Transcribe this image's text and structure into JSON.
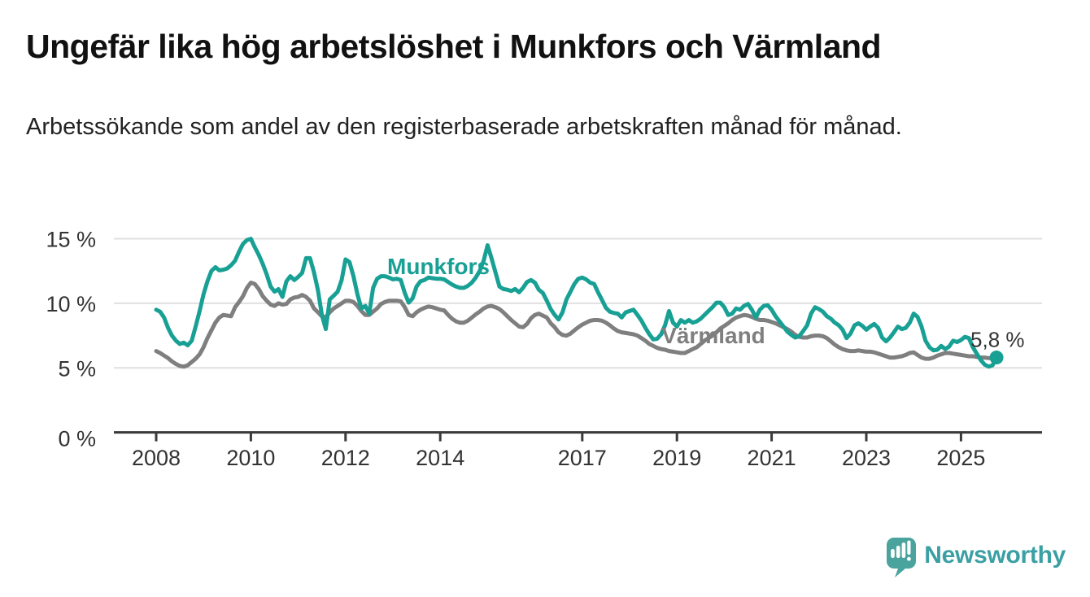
{
  "header": {
    "title": "Ungefär lika hög arbetslöshet i Munkfors och Värmland",
    "subtitle": "Arbetssökande som andel av den registerbaserade arbetskraften månad för månad."
  },
  "branding": {
    "logo_text": "Newsworthy",
    "logo_icon": "speech-bubble-bar-chart-icon"
  },
  "colors": {
    "munkfors_teal": "#18A095",
    "varmland_gray": "#7F7F7F",
    "gridline": "#E0E0E0",
    "axis": "#3A3A3A",
    "tick_label": "#333333",
    "annotation": "#333333",
    "logo_icon": "#4AA39D",
    "logo_text": "#3BA0A4"
  },
  "chart_data": {
    "type": "line",
    "title": "Ungefär lika hög arbetslöshet i Munkfors och Värmland",
    "xlabel": "",
    "ylabel": "Arbetssökande som andel av den registerbaserade arbetskraften",
    "x_frequency": "monthly",
    "x_start": "2008-01",
    "x_end": "2025-10",
    "xlim": [
      2007.1,
      2026.7
    ],
    "ylim": [
      0,
      16.5
    ],
    "grid": "horizontal",
    "legend": "inline-series-labels",
    "y_ticks": [
      0,
      5,
      10,
      15
    ],
    "y_tick_labels": [
      "0 %",
      "5 %",
      "10 %",
      "15 %"
    ],
    "y_gridlines": [
      5,
      10,
      15
    ],
    "x_ticks": [
      2008,
      2010,
      2012,
      2014,
      2017,
      2019,
      2021,
      2023,
      2025
    ],
    "x_tick_labels": [
      "2008",
      "2010",
      "2012",
      "2014",
      "2017",
      "2019",
      "2021",
      "2023",
      "2025"
    ],
    "annotation": {
      "text": "5,8 %",
      "series": "Munkfors",
      "position": "last-point",
      "last_value": 5.8
    },
    "series": [
      {
        "name": "Munkfors",
        "color": "#18A095",
        "end_dot": true,
        "values": [
          9.5,
          9.35,
          8.9,
          8.1,
          7.5,
          7.1,
          6.85,
          6.95,
          6.75,
          7.1,
          8.2,
          9.4,
          10.7,
          11.7,
          12.5,
          12.8,
          12.55,
          12.6,
          12.7,
          12.95,
          13.3,
          14.0,
          14.6,
          14.9,
          15.0,
          14.35,
          13.75,
          13.05,
          12.25,
          11.3,
          10.9,
          11.1,
          10.5,
          11.7,
          12.1,
          11.8,
          12.05,
          12.35,
          13.5,
          13.5,
          12.4,
          11.0,
          9.1,
          8.0,
          10.3,
          10.6,
          10.9,
          11.8,
          13.4,
          13.2,
          12.1,
          10.7,
          9.6,
          9.8,
          9.2,
          11.2,
          11.9,
          12.1,
          12.1,
          12.0,
          11.85,
          11.9,
          11.8,
          10.8,
          10.05,
          10.4,
          11.3,
          11.7,
          11.8,
          12.0,
          11.95,
          11.9,
          11.9,
          11.85,
          11.65,
          11.45,
          11.3,
          11.2,
          11.2,
          11.35,
          11.6,
          12.0,
          12.5,
          13.3,
          14.5,
          13.5,
          12.4,
          11.3,
          11.1,
          11.05,
          10.95,
          11.1,
          10.85,
          11.2,
          11.65,
          11.8,
          11.6,
          11.05,
          10.8,
          10.2,
          9.55,
          9.1,
          8.75,
          9.3,
          10.3,
          10.9,
          11.5,
          11.9,
          12.0,
          11.85,
          11.6,
          11.5,
          10.85,
          10.25,
          9.65,
          9.35,
          9.25,
          9.2,
          8.9,
          9.3,
          9.4,
          9.5,
          9.1,
          8.65,
          8.1,
          7.6,
          7.2,
          7.25,
          7.6,
          8.3,
          9.4,
          8.5,
          8.2,
          8.7,
          8.5,
          8.7,
          8.5,
          8.6,
          8.8,
          9.1,
          9.4,
          9.7,
          10.05,
          10.05,
          9.7,
          9.1,
          9.2,
          9.6,
          9.5,
          9.8,
          9.95,
          9.5,
          8.9,
          9.5,
          9.8,
          9.85,
          9.5,
          9.0,
          8.6,
          8.2,
          7.8,
          7.55,
          7.35,
          7.45,
          7.85,
          8.3,
          9.2,
          9.7,
          9.55,
          9.35,
          9.0,
          8.8,
          8.5,
          8.3,
          7.95,
          7.3,
          7.65,
          8.3,
          8.45,
          8.25,
          7.95,
          8.2,
          8.4,
          8.1,
          7.35,
          7.05,
          7.35,
          7.75,
          8.2,
          8.0,
          8.1,
          8.5,
          9.2,
          8.95,
          8.2,
          7.1,
          6.6,
          6.35,
          6.4,
          6.7,
          6.45,
          6.65,
          7.1,
          7.0,
          7.15,
          7.4,
          7.3,
          6.6,
          6.1,
          5.6,
          5.25,
          5.1,
          5.2,
          5.8
        ]
      },
      {
        "name": "Värmland",
        "color": "#7F7F7F",
        "end_dot": false,
        "values": [
          6.3,
          6.15,
          5.95,
          5.75,
          5.5,
          5.3,
          5.15,
          5.1,
          5.2,
          5.45,
          5.7,
          6.05,
          6.6,
          7.3,
          7.9,
          8.5,
          8.9,
          9.1,
          9.05,
          9.0,
          9.7,
          10.1,
          10.55,
          11.2,
          11.6,
          11.5,
          11.1,
          10.55,
          10.2,
          9.9,
          9.8,
          10.0,
          9.9,
          9.95,
          10.3,
          10.45,
          10.5,
          10.65,
          10.5,
          10.2,
          9.6,
          9.3,
          9.0,
          8.95,
          9.3,
          9.6,
          9.8,
          10.0,
          10.2,
          10.2,
          10.1,
          9.8,
          9.4,
          9.1,
          9.1,
          9.35,
          9.6,
          9.95,
          10.1,
          10.2,
          10.2,
          10.2,
          10.15,
          9.7,
          9.1,
          9.0,
          9.3,
          9.5,
          9.65,
          9.75,
          9.7,
          9.6,
          9.5,
          9.45,
          9.1,
          8.8,
          8.6,
          8.5,
          8.5,
          8.65,
          8.9,
          9.15,
          9.35,
          9.6,
          9.75,
          9.8,
          9.7,
          9.55,
          9.3,
          9.0,
          8.7,
          8.45,
          8.2,
          8.15,
          8.4,
          8.85,
          9.1,
          9.2,
          9.05,
          8.9,
          8.45,
          8.15,
          7.75,
          7.55,
          7.5,
          7.65,
          7.9,
          8.15,
          8.35,
          8.5,
          8.65,
          8.7,
          8.7,
          8.65,
          8.5,
          8.3,
          8.05,
          7.85,
          7.75,
          7.7,
          7.65,
          7.6,
          7.5,
          7.3,
          7.1,
          6.85,
          6.7,
          6.55,
          6.45,
          6.4,
          6.3,
          6.25,
          6.2,
          6.15,
          6.15,
          6.3,
          6.45,
          6.6,
          6.85,
          7.1,
          7.3,
          7.5,
          7.75,
          8.05,
          8.25,
          8.45,
          8.7,
          8.9,
          9.0,
          9.1,
          9.05,
          8.95,
          8.8,
          8.7,
          8.7,
          8.65,
          8.55,
          8.45,
          8.3,
          8.15,
          8.0,
          7.8,
          7.55,
          7.4,
          7.35,
          7.35,
          7.45,
          7.5,
          7.5,
          7.45,
          7.3,
          7.05,
          6.8,
          6.6,
          6.45,
          6.35,
          6.3,
          6.3,
          6.35,
          6.3,
          6.25,
          6.25,
          6.2,
          6.1,
          6.0,
          5.9,
          5.8,
          5.8,
          5.85,
          5.9,
          6.0,
          6.15,
          6.2,
          6.0,
          5.8,
          5.7,
          5.7,
          5.8,
          5.95,
          6.05,
          6.15,
          6.15,
          6.1,
          6.05,
          6.0,
          5.95,
          5.9,
          5.9,
          5.85,
          5.8,
          5.8,
          5.75,
          5.75,
          5.75
        ]
      }
    ]
  }
}
